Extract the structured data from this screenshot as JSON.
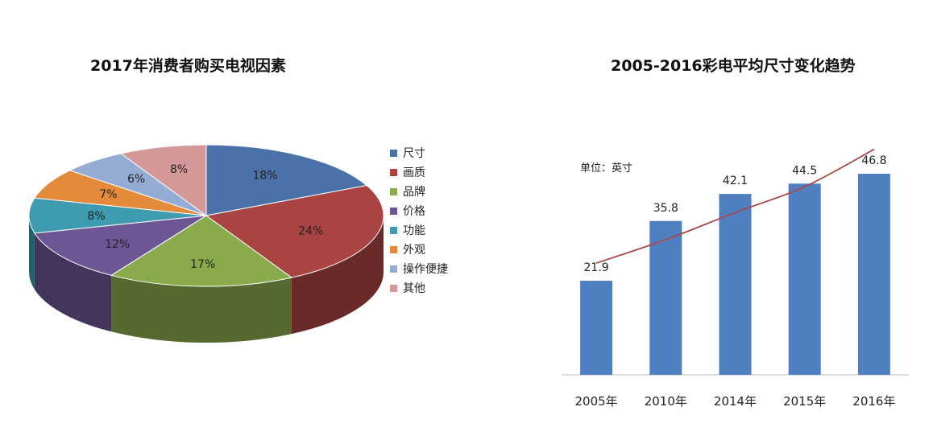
{
  "pie_title": "2017年消费者购买电视因素",
  "bar_title": "2005-2016彩电平均尺寸变化趋势",
  "bar_unit": "单位：英寸",
  "chart_data": [
    {
      "type": "pie",
      "title": "2017年消费者购买电视因素",
      "categories": [
        "尺寸",
        "画质",
        "品牌",
        "价格",
        "功能",
        "外观",
        "操作便捷",
        "其他"
      ],
      "values": [
        18,
        24,
        17,
        12,
        8,
        7,
        6,
        8
      ],
      "labels": [
        "18%",
        "24%",
        "17%",
        "12%",
        "8%",
        "7%",
        "6%",
        "8%"
      ],
      "colors": [
        "#4a72a9",
        "#a94442",
        "#8aab4b",
        "#6e5694",
        "#3e9bb0",
        "#e38b3a",
        "#94acd4",
        "#d49898"
      ],
      "legend": "right"
    },
    {
      "type": "bar",
      "title": "2005-2016彩电平均尺寸变化趋势",
      "categories": [
        "2005年",
        "2010年",
        "2014年",
        "2015年",
        "2016年"
      ],
      "values": [
        21.9,
        35.8,
        42.1,
        44.5,
        46.8
      ],
      "labels": [
        "21.9",
        "35.8",
        "42.1",
        "44.5",
        "46.8"
      ],
      "ylim": [
        0,
        50
      ],
      "bar_color": "#4f7ec1",
      "trend_color": "#a54a4a",
      "trendline": true,
      "grid": false
    }
  ]
}
